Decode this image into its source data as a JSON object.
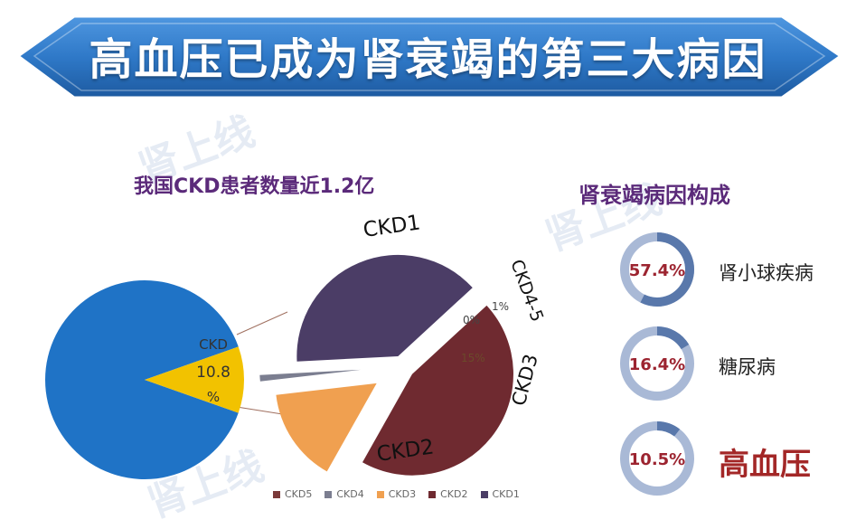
{
  "banner": {
    "title": "高血压已成为肾衰竭的第三大病因"
  },
  "watermark": "肾上线",
  "colors": {
    "banner_blue": "#2f79c8",
    "banner_dark": "#1b4f8c",
    "population": "#1f73c6",
    "ckd_highlight": "#f2c200",
    "ckd1": "#4b3d66",
    "ckd2": "#6f2a30",
    "ckd3": "#f0a050",
    "ckd4": "#7b7e90",
    "ckd5": "#7b3a3a",
    "title_purple": "#5b2a7a",
    "ring_bg": "#a9b9d6",
    "ring_fg": "#5978ab",
    "ring_text": "#9c2430"
  },
  "chart_data": [
    {
      "type": "pie",
      "title": "我国CKD患者数量近1.2亿",
      "slices": [
        {
          "label": "CKD",
          "value": 10.8,
          "display": "CKD 10.8 %"
        },
        {
          "label": "",
          "value": 89.2
        }
      ]
    },
    {
      "type": "pie",
      "legend": [
        "CKD5",
        "CKD4",
        "CKD3",
        "CKD2",
        "CKD1"
      ],
      "legend_placement": "bottom",
      "slices": [
        {
          "label": "CKD1",
          "value": 39,
          "display": ""
        },
        {
          "label": "CKD2",
          "value": 45,
          "display": ""
        },
        {
          "label": "CKD3",
          "value": 15,
          "display": "15%"
        },
        {
          "label": "CKD4-5",
          "value": 1,
          "display": "1%"
        },
        {
          "label": "",
          "value": 0,
          "display": "0%"
        }
      ]
    },
    {
      "type": "donut",
      "title": "肾衰竭病因构成",
      "items": [
        {
          "label": "肾小球疾病",
          "value": 57.4,
          "display": "57.4%"
        },
        {
          "label": "糖尿病",
          "value": 16.4,
          "display": "16.4%"
        },
        {
          "label": "高血压",
          "value": 10.5,
          "display": "10.5%"
        }
      ]
    }
  ]
}
